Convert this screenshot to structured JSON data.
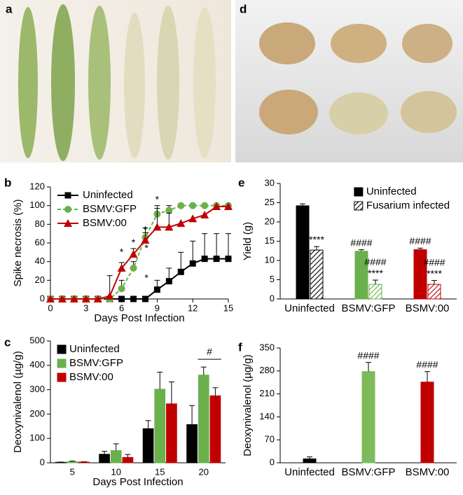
{
  "photo_panels": [
    {
      "label": "a"
    },
    {
      "label": "d"
    }
  ],
  "chart_data": [
    {
      "type": "line",
      "panel": "b",
      "xlabel": "Days Post Infection",
      "ylabel": "Spike necrosis (%)",
      "x": [
        0,
        1,
        2,
        3,
        4,
        5,
        6,
        7,
        8,
        9,
        10,
        11,
        12,
        13,
        14,
        15
      ],
      "xlim": [
        0,
        15
      ],
      "xticks": [
        0,
        3,
        6,
        9,
        12,
        15
      ],
      "ylim": [
        0,
        120
      ],
      "yticks": [
        0,
        20,
        40,
        60,
        80,
        100,
        120
      ],
      "legend": "upper left",
      "series": [
        {
          "name": "Uninfected",
          "color": "#000000",
          "marker": "square",
          "linestyle": "solid",
          "values": [
            0,
            0,
            0,
            0,
            0,
            0,
            0,
            0,
            0,
            10,
            19,
            29,
            38,
            43,
            43,
            43
          ],
          "errors": [
            null,
            null,
            null,
            null,
            null,
            null,
            null,
            null,
            null,
            10,
            14,
            21,
            24,
            27,
            27,
            27
          ]
        },
        {
          "name": "BSMV:GFP",
          "color": "#6ab04c",
          "marker": "circle",
          "linestyle": "dashed",
          "values": [
            0,
            0,
            0,
            0,
            0,
            0,
            11,
            33,
            66,
            91,
            95,
            100,
            100,
            100,
            100,
            100
          ],
          "errors": [
            null,
            null,
            null,
            null,
            null,
            null,
            9,
            7,
            10,
            9,
            5,
            null,
            null,
            null,
            null,
            null
          ]
        },
        {
          "name": "BSMV:00",
          "color": "#c00000",
          "marker": "triangle",
          "linestyle": "solid",
          "values": [
            0,
            0,
            0,
            0,
            0,
            3,
            33,
            48,
            63,
            77,
            77,
            81,
            86,
            90,
            99,
            99
          ],
          "errors": [
            null,
            null,
            null,
            null,
            null,
            22,
            6,
            6,
            8,
            20,
            15,
            null,
            null,
            null,
            null,
            null
          ]
        }
      ],
      "annotations": [
        {
          "text": "*",
          "x": 6,
          "y": 52
        },
        {
          "text": "*",
          "x": 7,
          "y": 62
        },
        {
          "text": "*",
          "x": 8,
          "y": 76
        },
        {
          "text": "*",
          "x": 8.1,
          "y": 56
        },
        {
          "text": "*",
          "x": 8.1,
          "y": 24
        },
        {
          "text": "*",
          "x": 9,
          "y": 108
        }
      ]
    },
    {
      "type": "bar",
      "panel": "c",
      "xlabel": "Days Post Infection",
      "ylabel": "Deoxynivalenol (µg/g)",
      "categories": [
        "5",
        "10",
        "15",
        "20"
      ],
      "ylim": [
        0,
        500
      ],
      "yticks": [
        0,
        100,
        200,
        300,
        400,
        500
      ],
      "legend": "upper left",
      "series": [
        {
          "name": "Uninfected",
          "color": "#000000",
          "values": [
            2,
            35,
            140,
            157
          ],
          "errors": [
            1,
            12,
            33,
            78
          ]
        },
        {
          "name": "BSMV:GFP",
          "color": "#6ab04c",
          "values": [
            5,
            50,
            302,
            360
          ],
          "errors": [
            2,
            28,
            70,
            33
          ]
        },
        {
          "name": "BSMV:00",
          "color": "#c00000",
          "values": [
            3,
            22,
            242,
            275
          ],
          "errors": [
            1,
            12,
            90,
            33
          ]
        }
      ],
      "annotations": [
        {
          "text": "#",
          "category": 3,
          "y": 425
        }
      ]
    },
    {
      "type": "bar",
      "panel": "e",
      "ylabel": "Yield (g)",
      "categories": [
        "Uninfected",
        "BSMV:GFP",
        "BSMV:00"
      ],
      "ylim": [
        0,
        30
      ],
      "yticks": [
        0,
        5,
        10,
        15,
        20,
        25,
        30
      ],
      "legend": "upper right",
      "series": [
        {
          "name": "Uninfected",
          "colors": [
            "#000000",
            "#6ab04c",
            "#c00000"
          ],
          "hatch": false,
          "values": [
            24.2,
            12.4,
            12.8
          ],
          "errors": [
            0.5,
            0.4,
            0.4
          ],
          "annotations": [
            [],
            [
              "####"
            ],
            [
              "####"
            ]
          ]
        },
        {
          "name": "Fusarium infected",
          "colors": [
            "#000000",
            "#6ab04c",
            "#c00000"
          ],
          "hatch": true,
          "values": [
            12.7,
            3.8,
            3.8
          ],
          "errors": [
            0.9,
            1.1,
            1.0
          ],
          "annotations": [
            [
              "****"
            ],
            [
              "####",
              "****"
            ],
            [
              "####",
              "****"
            ]
          ]
        }
      ]
    },
    {
      "type": "bar",
      "panel": "f",
      "ylabel": "Deoxynivalenol (µg/g)",
      "categories": [
        "Uninfected",
        "BSMV:GFP",
        "BSMV:00"
      ],
      "ylim": [
        0,
        350
      ],
      "yticks": [
        0,
        70,
        140,
        210,
        280,
        350
      ],
      "series": [
        {
          "colors": [
            "#000000",
            "#7dbb5a",
            "#c00000"
          ],
          "hatch": false,
          "values": [
            12,
            278,
            246
          ],
          "errors": [
            6,
            28,
            32
          ],
          "annotations": [
            [],
            [
              "####"
            ],
            [
              "####"
            ]
          ]
        }
      ]
    }
  ]
}
